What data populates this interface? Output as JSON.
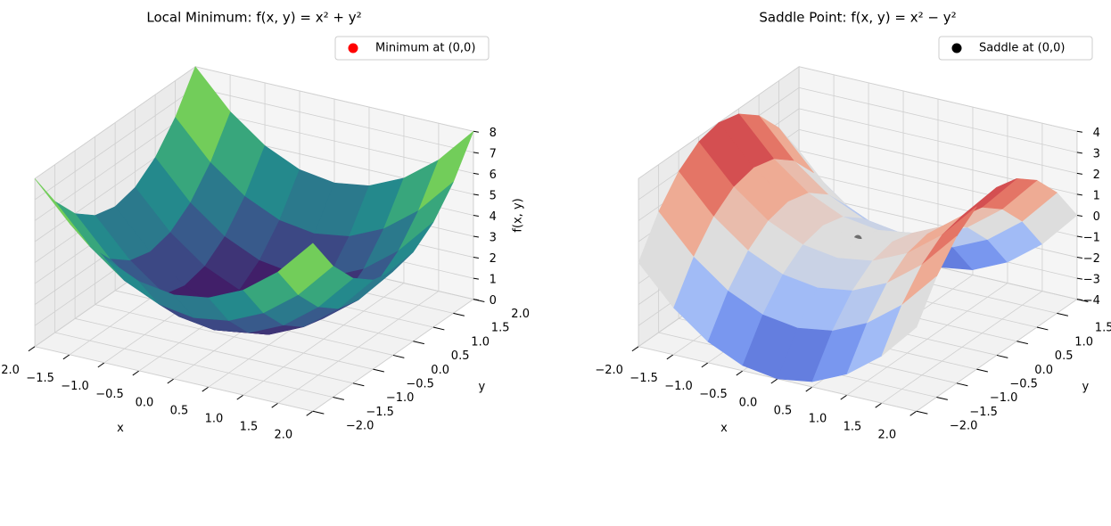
{
  "chart_data": [
    {
      "type": "surface",
      "title": "Local Minimum: f(x, y) = x² + y²",
      "xlabel": "x",
      "ylabel": "y",
      "zlabel": "f(x, y)",
      "colormap": "viridis",
      "legend": "upper right",
      "x": [
        -2,
        -1.5,
        -1,
        -0.5,
        0,
        0.5,
        1,
        1.5,
        2
      ],
      "y": [
        -2,
        -1.5,
        -1,
        -0.5,
        0,
        0.5,
        1,
        1.5,
        2
      ],
      "z": [
        [
          8,
          6.25,
          5,
          4.25,
          4,
          4.25,
          5,
          6.25,
          8
        ],
        [
          6.25,
          4.5,
          3.25,
          2.5,
          2.25,
          2.5,
          3.25,
          4.5,
          6.25
        ],
        [
          5,
          3.25,
          2,
          1.25,
          1,
          1.25,
          2,
          3.25,
          5
        ],
        [
          4.25,
          2.5,
          1.25,
          0.5,
          0.25,
          0.5,
          1.25,
          2.5,
          4.25
        ],
        [
          4,
          2.25,
          1,
          0.25,
          0,
          0.25,
          1,
          2.25,
          4
        ],
        [
          4.25,
          2.5,
          1.25,
          0.5,
          0.25,
          0.5,
          1.25,
          2.5,
          4.25
        ],
        [
          5,
          3.25,
          2,
          1.25,
          1,
          1.25,
          2,
          3.25,
          5
        ],
        [
          6.25,
          4.5,
          3.25,
          2.5,
          2.25,
          2.5,
          3.25,
          4.5,
          6.25
        ],
        [
          8,
          6.25,
          5,
          4.25,
          4,
          4.25,
          5,
          6.25,
          8
        ]
      ],
      "points": [
        {
          "name": "Minimum at (0,0)",
          "color": "#ff0000",
          "x": 0,
          "y": 0,
          "z": 0
        }
      ],
      "xlim": [
        -2,
        2
      ],
      "ylim": [
        -2,
        2
      ],
      "zlim": [
        0,
        8
      ],
      "xticks": [
        {
          "value": -2,
          "label": "−2.0"
        },
        {
          "value": -1.5,
          "label": "−1.5"
        },
        {
          "value": -1,
          "label": "−1.0"
        },
        {
          "value": -0.5,
          "label": "−0.5"
        },
        {
          "value": 0,
          "label": "0.0"
        },
        {
          "value": 0.5,
          "label": "0.5"
        },
        {
          "value": 1,
          "label": "1.0"
        },
        {
          "value": 1.5,
          "label": "1.5"
        },
        {
          "value": 2,
          "label": "2.0"
        }
      ],
      "yticks": [
        {
          "value": -2,
          "label": "−2.0"
        },
        {
          "value": -1.5,
          "label": "−1.5"
        },
        {
          "value": -1,
          "label": "−1.0"
        },
        {
          "value": -0.5,
          "label": "−0.5"
        },
        {
          "value": 0,
          "label": "0.0"
        },
        {
          "value": 0.5,
          "label": "0.5"
        },
        {
          "value": 1,
          "label": "1.0"
        },
        {
          "value": 1.5,
          "label": "1.5"
        },
        {
          "value": 2,
          "label": "2.0"
        }
      ],
      "zticks": [
        0,
        1,
        2,
        3,
        4,
        5,
        6,
        7,
        8
      ]
    },
    {
      "type": "surface",
      "title": "Saddle Point: f(x, y) = x² − y²",
      "xlabel": "x",
      "ylabel": "y",
      "colormap": "coolwarm",
      "legend": "upper right",
      "x": [
        -2,
        -1.5,
        -1,
        -0.5,
        0,
        0.5,
        1,
        1.5,
        2
      ],
      "y": [
        -2,
        -1.5,
        -1,
        -0.5,
        0,
        0.5,
        1,
        1.5,
        2
      ],
      "z": [
        [
          0,
          -1.75,
          -3,
          -3.75,
          -4,
          -3.75,
          -3,
          -1.75,
          0
        ],
        [
          1.75,
          0,
          -1.25,
          -2,
          -2.25,
          -2,
          -1.25,
          0,
          1.75
        ],
        [
          3,
          1.25,
          0,
          -0.75,
          -1,
          -0.75,
          0,
          1.25,
          3
        ],
        [
          3.75,
          2,
          0.75,
          0,
          -0.25,
          0,
          0.75,
          2,
          3.75
        ],
        [
          4,
          2.25,
          1,
          0.25,
          0,
          0.25,
          1,
          2.25,
          4
        ],
        [
          3.75,
          2,
          0.75,
          0,
          -0.25,
          0,
          0.75,
          2,
          3.75
        ],
        [
          3,
          1.25,
          0,
          -0.75,
          -1,
          -0.75,
          0,
          1.25,
          3
        ],
        [
          1.75,
          0,
          -1.25,
          -2,
          -2.25,
          -2,
          -1.25,
          0,
          1.75
        ],
        [
          0,
          -1.75,
          -3,
          -3.75,
          -4,
          -3.75,
          -3,
          -1.75,
          0
        ]
      ],
      "points": [
        {
          "name": "Saddle at (0,0)",
          "color": "#000000",
          "x": 0,
          "y": 0,
          "z": 0
        }
      ],
      "xlim": [
        -2,
        2
      ],
      "ylim": [
        -2,
        2
      ],
      "zlim": [
        -4,
        4
      ],
      "xticks": [
        {
          "value": -2,
          "label": "−2.0"
        },
        {
          "value": -1.5,
          "label": "−1.5"
        },
        {
          "value": -1,
          "label": "−1.0"
        },
        {
          "value": -0.5,
          "label": "−0.5"
        },
        {
          "value": 0,
          "label": "0.0"
        },
        {
          "value": 0.5,
          "label": "0.5"
        },
        {
          "value": 1,
          "label": "1.0"
        },
        {
          "value": 1.5,
          "label": "1.5"
        },
        {
          "value": 2,
          "label": "2.0"
        }
      ],
      "yticks": [
        {
          "value": -2,
          "label": "−2.0"
        },
        {
          "value": -1.5,
          "label": "−1.5"
        },
        {
          "value": -1,
          "label": "−1.0"
        },
        {
          "value": -0.5,
          "label": "−0.5"
        },
        {
          "value": 0,
          "label": "0.0"
        },
        {
          "value": 0.5,
          "label": "0.5"
        },
        {
          "value": 1,
          "label": "1.0"
        },
        {
          "value": 1.5,
          "label": "1.5"
        },
        {
          "value": 2,
          "label": "2.0"
        }
      ],
      "zticks": [
        {
          "value": -4,
          "label": "−4"
        },
        {
          "value": -3,
          "label": "−3"
        },
        {
          "value": -2,
          "label": "−2"
        },
        {
          "value": -1,
          "label": "−1"
        },
        0,
        1,
        2,
        3,
        4
      ]
    }
  ]
}
